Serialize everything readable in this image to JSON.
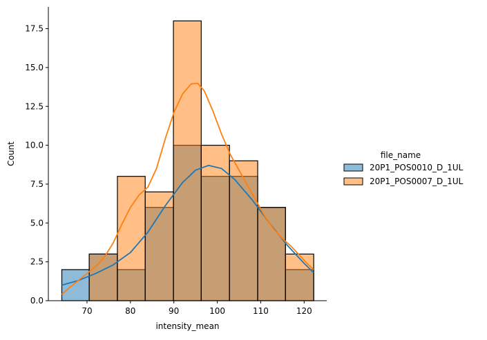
{
  "chart_data": {
    "type": "histogram",
    "xlabel": "intensity_mean",
    "ylabel": "Count",
    "xlim": [
      61.1,
      125.2
    ],
    "ylim": [
      0,
      18.9
    ],
    "x_ticks": [
      70,
      80,
      90,
      100,
      110,
      120
    ],
    "y_ticks": [
      0.0,
      2.5,
      5.0,
      7.5,
      10.0,
      12.5,
      15.0,
      17.5
    ],
    "bin_edges": [
      64.2,
      70.5,
      77.0,
      83.4,
      89.9,
      96.3,
      102.8,
      109.3,
      115.7,
      122.2
    ],
    "legend": {
      "title": "file_name",
      "placement": "right"
    },
    "series": [
      {
        "name": "20P1_POS0010_D_1UL",
        "color": "#1f77b4",
        "counts": [
          2,
          3,
          2,
          6,
          10,
          8,
          8,
          6,
          2
        ],
        "kde": [
          [
            64.2,
            1.0
          ],
          [
            68,
            1.3
          ],
          [
            72,
            1.75
          ],
          [
            76,
            2.3
          ],
          [
            80,
            3.1
          ],
          [
            84,
            4.4
          ],
          [
            88,
            6.1
          ],
          [
            92,
            7.6
          ],
          [
            95,
            8.4
          ],
          [
            98,
            8.7
          ],
          [
            101,
            8.5
          ],
          [
            104,
            7.8
          ],
          [
            108,
            6.5
          ],
          [
            112,
            5.0
          ],
          [
            116,
            3.6
          ],
          [
            120,
            2.4
          ],
          [
            122.2,
            1.8
          ]
        ]
      },
      {
        "name": "20P1_POS0007_D_1UL",
        "color": "#ff7f0e",
        "counts": [
          0,
          3,
          8,
          7,
          18,
          10,
          9,
          6,
          3
        ],
        "kde": [
          [
            64.2,
            0.4
          ],
          [
            66,
            0.85
          ],
          [
            68,
            1.3
          ],
          [
            70,
            1.75
          ],
          [
            72,
            2.2
          ],
          [
            74,
            2.8
          ],
          [
            76,
            3.7
          ],
          [
            78,
            4.9
          ],
          [
            80,
            6.0
          ],
          [
            82,
            6.8
          ],
          [
            84,
            7.3
          ],
          [
            86,
            8.5
          ],
          [
            88,
            10.4
          ],
          [
            90,
            12.1
          ],
          [
            92,
            13.3
          ],
          [
            94,
            13.95
          ],
          [
            95.5,
            13.98
          ],
          [
            97,
            13.5
          ],
          [
            99,
            12.2
          ],
          [
            101,
            10.7
          ],
          [
            103,
            9.4
          ],
          [
            105,
            8.4
          ],
          [
            107,
            7.4
          ],
          [
            109,
            6.4
          ],
          [
            111,
            5.4
          ],
          [
            113,
            4.6
          ],
          [
            115,
            4.0
          ],
          [
            117,
            3.5
          ],
          [
            119,
            2.9
          ],
          [
            121,
            2.3
          ],
          [
            122.2,
            2.0
          ]
        ]
      }
    ]
  }
}
